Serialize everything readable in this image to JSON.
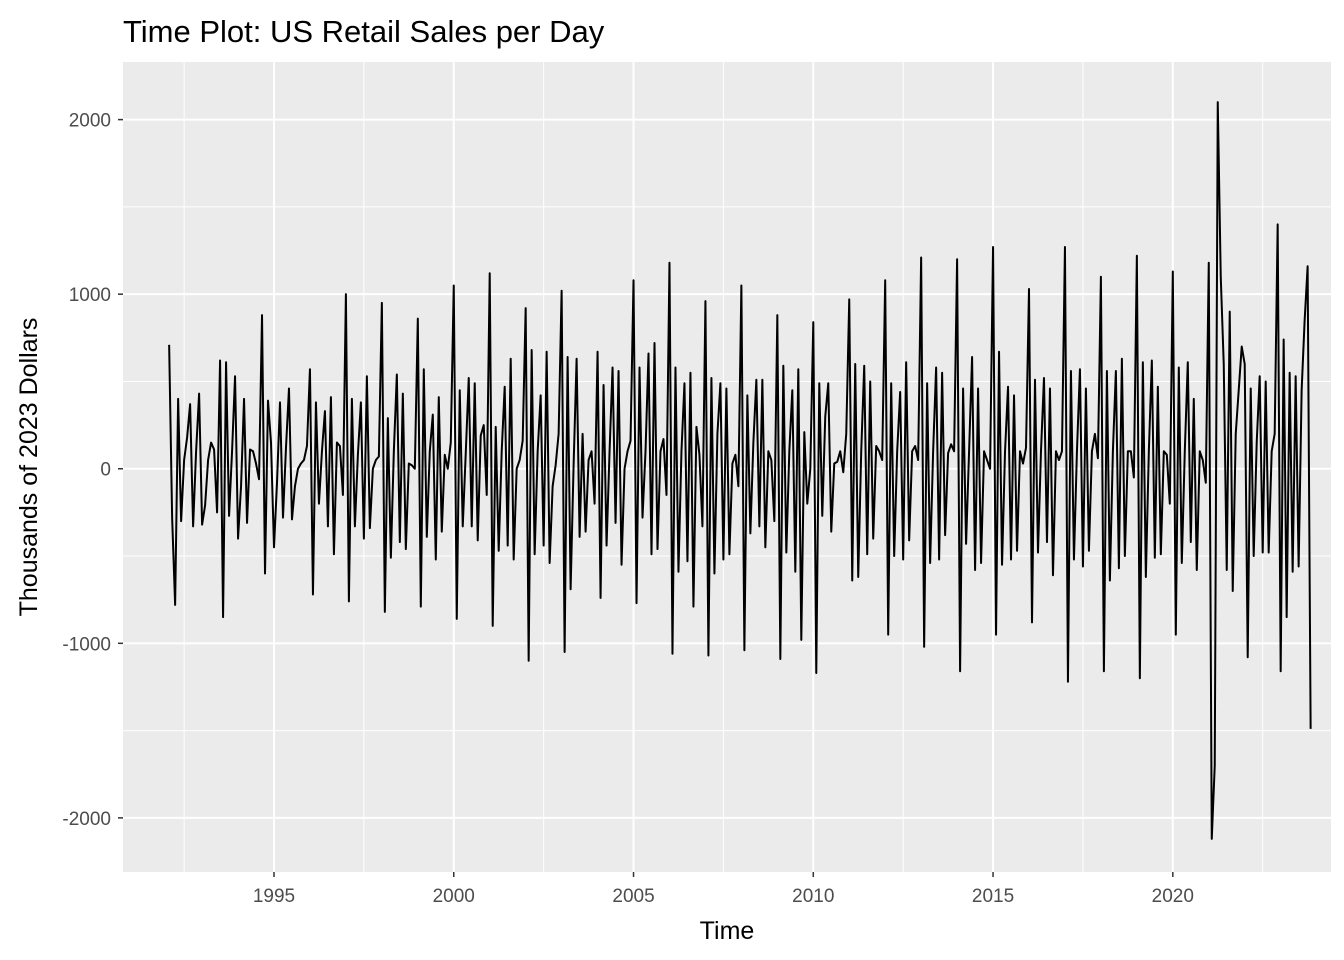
{
  "chart_data": {
    "type": "line",
    "title": "Time Plot: US Retail Sales per Day",
    "xlabel": "Time",
    "ylabel": "Thousands of 2023 Dollars",
    "xlim": [
      1990.8,
      2024.4
    ],
    "ylim": [
      -2310,
      2330
    ],
    "x_ticks": [
      1995,
      2000,
      2005,
      2010,
      2015,
      2020
    ],
    "x_minor_ticks": [
      1992.5,
      1997.5,
      2002.5,
      2007.5,
      2012.5,
      2017.5,
      2022.5
    ],
    "y_ticks": [
      -2000,
      -1000,
      0,
      1000,
      2000
    ],
    "y_minor_ticks": [
      -1500,
      -500,
      500,
      1500
    ],
    "grid": true,
    "panel_background": "#ebebeb",
    "grid_color": "#ffffff",
    "line_color": "#000000",
    "series": [
      {
        "x_start": "1992-02",
        "frequency": "monthly",
        "values": [
          710,
          -280,
          -780,
          400,
          -300,
          50,
          180,
          370,
          -330,
          100,
          430,
          -320,
          -210,
          50,
          150,
          110,
          -250,
          620,
          -850,
          610,
          -270,
          100,
          530,
          -400,
          -100,
          400,
          -310,
          110,
          100,
          30,
          -60,
          880,
          -600,
          390,
          150,
          -450,
          -80,
          380,
          -280,
          120,
          460,
          -290,
          -100,
          0,
          30,
          50,
          130,
          570,
          -720,
          380,
          -200,
          100,
          330,
          -330,
          410,
          -490,
          150,
          130,
          -150,
          1000,
          -760,
          400,
          -330,
          80,
          380,
          -400,
          530,
          -340,
          0,
          50,
          70,
          950,
          -820,
          290,
          -510,
          100,
          540,
          -420,
          430,
          -460,
          30,
          20,
          0,
          860,
          -790,
          570,
          -390,
          100,
          310,
          -520,
          410,
          -360,
          80,
          0,
          150,
          1050,
          -860,
          450,
          -330,
          90,
          520,
          -330,
          490,
          -410,
          190,
          250,
          -150,
          1120,
          -900,
          240,
          -470,
          100,
          470,
          -440,
          630,
          -520,
          0,
          50,
          160,
          920,
          -1100,
          680,
          -490,
          100,
          420,
          -440,
          670,
          -540,
          -100,
          20,
          200,
          1020,
          -1050,
          640,
          -690,
          20,
          630,
          -390,
          200,
          -360,
          50,
          100,
          -200,
          670,
          -740,
          480,
          -440,
          100,
          580,
          -310,
          560,
          -550,
          0,
          100,
          160,
          1080,
          -770,
          580,
          -280,
          100,
          660,
          -490,
          720,
          -460,
          100,
          170,
          -150,
          1180,
          -1060,
          580,
          -590,
          100,
          490,
          -530,
          550,
          -790,
          240,
          80,
          -330,
          960,
          -1070,
          520,
          -600,
          200,
          490,
          -520,
          460,
          -490,
          30,
          80,
          -100,
          1050,
          -1040,
          420,
          -370,
          150,
          510,
          -330,
          510,
          -450,
          100,
          50,
          -300,
          880,
          -1090,
          590,
          -480,
          100,
          450,
          -590,
          570,
          -980,
          210,
          -200,
          0,
          840,
          -1170,
          490,
          -270,
          300,
          490,
          -360,
          30,
          40,
          100,
          -20,
          200,
          970,
          -640,
          600,
          -620,
          100,
          590,
          -490,
          500,
          -400,
          130,
          100,
          50,
          1080,
          -950,
          490,
          -500,
          100,
          440,
          -520,
          610,
          -410,
          100,
          130,
          50,
          1210,
          -1020,
          490,
          -540,
          100,
          580,
          -520,
          550,
          -380,
          90,
          140,
          100,
          1200,
          -1160,
          460,
          -430,
          100,
          640,
          -580,
          460,
          -540,
          100,
          50,
          0,
          1270,
          -950,
          670,
          -550,
          100,
          470,
          -520,
          420,
          -470,
          100,
          30,
          120,
          1030,
          -880,
          510,
          -480,
          100,
          520,
          -420,
          460,
          -610,
          100,
          50,
          100,
          1270,
          -1220,
          560,
          -520,
          100,
          570,
          -560,
          460,
          -470,
          100,
          200,
          60,
          1100,
          -1160,
          560,
          -640,
          100,
          560,
          -570,
          630,
          -500,
          100,
          100,
          -50,
          1220,
          -1200,
          610,
          -620,
          100,
          620,
          -510,
          470,
          -490,
          100,
          80,
          -200,
          1130,
          -950,
          580,
          -540,
          100,
          610,
          -420,
          400,
          -580,
          100,
          50,
          -80,
          1180,
          -2120,
          -1700,
          2100,
          1100,
          600,
          -580,
          900,
          -700,
          200,
          450,
          700,
          600,
          -1080,
          460,
          -500,
          150,
          530,
          -480,
          500,
          -480,
          100,
          200,
          1400,
          -1160,
          740,
          -850,
          550,
          -590,
          530,
          -560,
          450,
          850,
          1160,
          -1490
        ]
      }
    ]
  }
}
